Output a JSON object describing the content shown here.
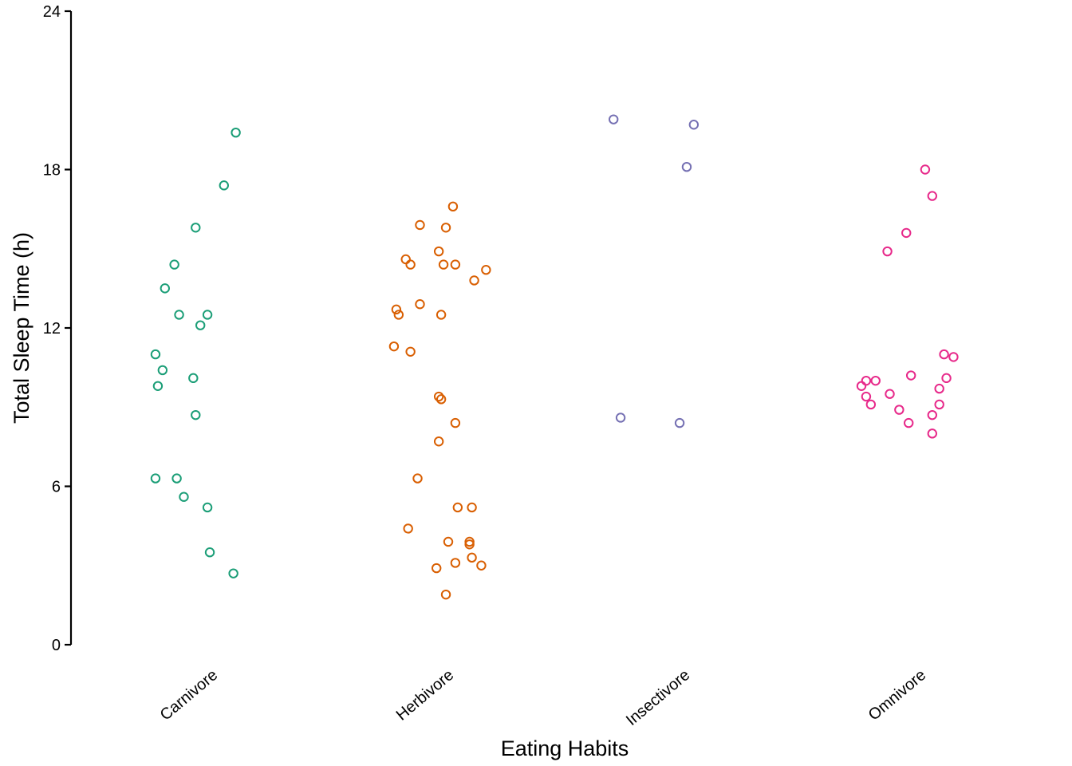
{
  "chart_data": {
    "type": "scatter",
    "title": "",
    "xlabel": "Eating Habits",
    "ylabel": "Total Sleep Time (h)",
    "ylim": [
      0,
      24
    ],
    "yticks": [
      "0",
      "6",
      "12",
      "18",
      "24"
    ],
    "categories": [
      "Carnivore",
      "Herbivore",
      "Insectivore",
      "Omnivore"
    ],
    "grid": false,
    "legend": "none",
    "colors": [
      "#1b9e77",
      "#d95f02",
      "#7570b3",
      "#e7298a"
    ],
    "series": [
      {
        "points": [
          {
            "x": -0.24,
            "y": 6.3
          },
          {
            "x": -0.15,
            "y": 6.3
          },
          {
            "x": -0.12,
            "y": 5.6
          },
          {
            "x": -0.02,
            "y": 5.2
          },
          {
            "x": -0.01,
            "y": 3.5
          },
          {
            "x": 0.09,
            "y": 2.7
          },
          {
            "x": -0.08,
            "y": 10.1
          },
          {
            "x": -0.07,
            "y": 8.7
          },
          {
            "x": -0.24,
            "y": 11.0
          },
          {
            "x": -0.21,
            "y": 10.4
          },
          {
            "x": -0.23,
            "y": 9.8
          },
          {
            "x": -0.2,
            "y": 13.5
          },
          {
            "x": -0.16,
            "y": 14.4
          },
          {
            "x": -0.14,
            "y": 12.5
          },
          {
            "x": -0.05,
            "y": 12.1
          },
          {
            "x": -0.02,
            "y": 12.5
          },
          {
            "x": -0.07,
            "y": 15.8
          },
          {
            "x": 0.05,
            "y": 17.4
          },
          {
            "x": 0.1,
            "y": 19.4
          }
        ]
      },
      {
        "points": [
          {
            "x": -0.23,
            "y": 11.3
          },
          {
            "x": -0.16,
            "y": 11.1
          },
          {
            "x": -0.22,
            "y": 12.7
          },
          {
            "x": -0.21,
            "y": 12.5
          },
          {
            "x": -0.12,
            "y": 12.9
          },
          {
            "x": -0.03,
            "y": 12.5
          },
          {
            "x": -0.18,
            "y": 14.6
          },
          {
            "x": -0.16,
            "y": 14.4
          },
          {
            "x": -0.04,
            "y": 14.9
          },
          {
            "x": -0.02,
            "y": 14.4
          },
          {
            "x": 0.03,
            "y": 14.4
          },
          {
            "x": 0.11,
            "y": 13.8
          },
          {
            "x": 0.16,
            "y": 14.2
          },
          {
            "x": -0.12,
            "y": 15.9
          },
          {
            "x": -0.01,
            "y": 15.8
          },
          {
            "x": 0.02,
            "y": 16.6
          },
          {
            "x": -0.04,
            "y": 9.4
          },
          {
            "x": -0.03,
            "y": 9.3
          },
          {
            "x": 0.03,
            "y": 8.4
          },
          {
            "x": -0.04,
            "y": 7.7
          },
          {
            "x": -0.13,
            "y": 6.3
          },
          {
            "x": -0.17,
            "y": 4.4
          },
          {
            "x": 0.04,
            "y": 5.2
          },
          {
            "x": 0.1,
            "y": 5.2
          },
          {
            "x": 0.0,
            "y": 3.9
          },
          {
            "x": 0.09,
            "y": 3.9
          },
          {
            "x": 0.09,
            "y": 3.8
          },
          {
            "x": -0.05,
            "y": 2.9
          },
          {
            "x": 0.03,
            "y": 3.1
          },
          {
            "x": 0.1,
            "y": 3.3
          },
          {
            "x": 0.14,
            "y": 3.0
          },
          {
            "x": -0.01,
            "y": 1.9
          }
        ]
      },
      {
        "points": [
          {
            "x": -0.3,
            "y": 19.9
          },
          {
            "x": 0.04,
            "y": 19.7
          },
          {
            "x": 0.01,
            "y": 18.1
          },
          {
            "x": -0.27,
            "y": 8.6
          },
          {
            "x": -0.02,
            "y": 8.4
          }
        ]
      },
      {
        "points": [
          {
            "x": 0.02,
            "y": 18.0
          },
          {
            "x": 0.05,
            "y": 17.0
          },
          {
            "x": -0.06,
            "y": 15.6
          },
          {
            "x": -0.14,
            "y": 14.9
          },
          {
            "x": 0.1,
            "y": 11.0
          },
          {
            "x": 0.14,
            "y": 10.9
          },
          {
            "x": -0.23,
            "y": 10.0
          },
          {
            "x": -0.19,
            "y": 10.0
          },
          {
            "x": -0.25,
            "y": 9.8
          },
          {
            "x": -0.23,
            "y": 9.4
          },
          {
            "x": -0.21,
            "y": 9.1
          },
          {
            "x": -0.13,
            "y": 9.5
          },
          {
            "x": -0.09,
            "y": 8.9
          },
          {
            "x": -0.04,
            "y": 10.2
          },
          {
            "x": 0.08,
            "y": 9.7
          },
          {
            "x": 0.11,
            "y": 10.1
          },
          {
            "x": 0.08,
            "y": 9.1
          },
          {
            "x": 0.05,
            "y": 8.7
          },
          {
            "x": 0.05,
            "y": 8.0
          },
          {
            "x": -0.05,
            "y": 8.4
          }
        ]
      }
    ]
  }
}
